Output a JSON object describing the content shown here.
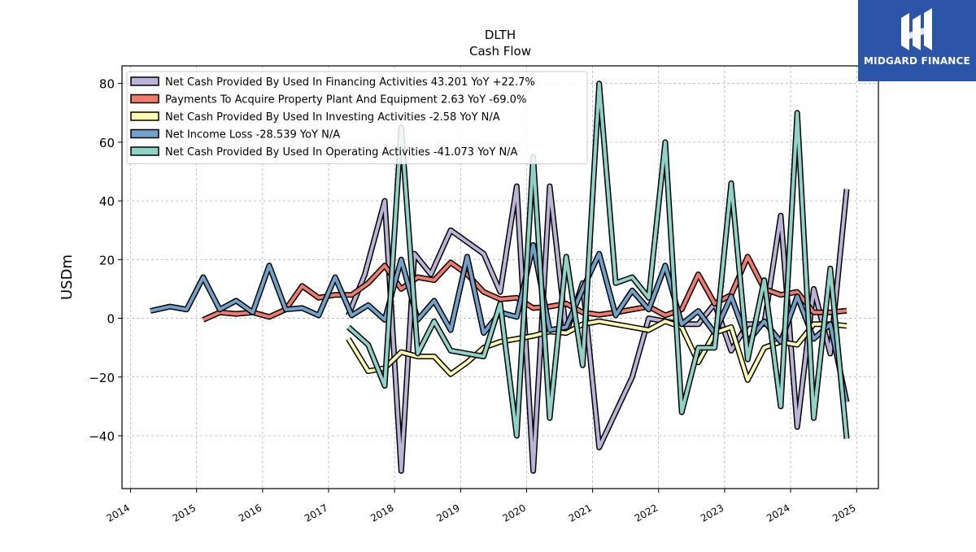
{
  "brand": {
    "name": "MIDGARD FINANCE",
    "color": "#2c54a8"
  },
  "chart_data": {
    "type": "line",
    "title": "DLTH",
    "subtitle": "Cash Flow",
    "xlabel": "",
    "ylabel": "USDm",
    "ylim": [
      -58,
      86
    ],
    "yticks": [
      -40,
      -20,
      0,
      20,
      40,
      60,
      80
    ],
    "ytick_labels": [
      "−40",
      "−20",
      "0",
      "20",
      "40",
      "60",
      "80"
    ],
    "xlim": [
      2013.87,
      2025.33
    ],
    "xticks": [
      2014,
      2015,
      2016,
      2017,
      2018,
      2019,
      2020,
      2021,
      2022,
      2023,
      2024,
      2025
    ],
    "xtick_labels": [
      "2014",
      "2015",
      "2016",
      "2017",
      "2018",
      "2019",
      "2020",
      "2021",
      "2022",
      "2023",
      "2024",
      "2025"
    ],
    "grid": true,
    "legend_position": "top-left",
    "series": [
      {
        "name": "Net Cash Provided By Used In Financing Activities  43.201 YoY +22.7%",
        "color": "#bcb3d8",
        "points": [
          [
            2017.3,
            1
          ],
          [
            2017.55,
            15
          ],
          [
            2017.85,
            40
          ],
          [
            2018.1,
            -52
          ],
          [
            2018.3,
            22
          ],
          [
            2018.55,
            15
          ],
          [
            2018.85,
            30
          ],
          [
            2019.35,
            22
          ],
          [
            2019.6,
            9
          ],
          [
            2019.85,
            45
          ],
          [
            2020.1,
            -52
          ],
          [
            2020.35,
            45
          ],
          [
            2020.6,
            -5
          ],
          [
            2020.85,
            12
          ],
          [
            2021.1,
            -44
          ],
          [
            2021.6,
            -20
          ],
          [
            2021.85,
            0
          ],
          [
            2022.1,
            -1
          ],
          [
            2022.35,
            -2
          ],
          [
            2022.6,
            -2
          ],
          [
            2022.85,
            5
          ],
          [
            2023.1,
            -11
          ],
          [
            2023.35,
            -2
          ],
          [
            2023.6,
            -2
          ],
          [
            2023.85,
            35
          ],
          [
            2024.1,
            -37
          ],
          [
            2024.35,
            10
          ],
          [
            2024.6,
            -12
          ],
          [
            2024.85,
            44
          ]
        ]
      },
      {
        "name": "Payments To Acquire Property Plant And Equipment  2.63 YoY -69.0%",
        "color": "#f07b6b",
        "points": [
          [
            2015.1,
            -0.5
          ],
          [
            2015.35,
            2
          ],
          [
            2015.6,
            1.5
          ],
          [
            2015.85,
            2
          ],
          [
            2016.1,
            0.5
          ],
          [
            2016.35,
            3
          ],
          [
            2016.6,
            11
          ],
          [
            2016.85,
            7
          ],
          [
            2017.1,
            8
          ],
          [
            2017.35,
            8
          ],
          [
            2017.6,
            12
          ],
          [
            2017.85,
            18
          ],
          [
            2018.1,
            10
          ],
          [
            2018.35,
            14
          ],
          [
            2018.6,
            13
          ],
          [
            2018.85,
            19
          ],
          [
            2019.1,
            15
          ],
          [
            2019.35,
            9
          ],
          [
            2019.6,
            6.5
          ],
          [
            2019.85,
            7
          ],
          [
            2020.1,
            3.5
          ],
          [
            2020.35,
            4
          ],
          [
            2020.6,
            5
          ],
          [
            2020.85,
            2
          ],
          [
            2021.1,
            1.2
          ],
          [
            2021.35,
            2
          ],
          [
            2021.6,
            3
          ],
          [
            2021.85,
            4
          ],
          [
            2022.1,
            1
          ],
          [
            2022.35,
            3
          ],
          [
            2022.6,
            15
          ],
          [
            2022.85,
            5
          ],
          [
            2023.1,
            8
          ],
          [
            2023.35,
            21
          ],
          [
            2023.6,
            10
          ],
          [
            2023.85,
            8
          ],
          [
            2024.1,
            9
          ],
          [
            2024.35,
            2
          ],
          [
            2024.6,
            2
          ],
          [
            2024.85,
            2.63
          ]
        ]
      },
      {
        "name": "Net Cash Provided By Used In Investing Activities  -2.58 YoY N/A",
        "color": "#fdfcae",
        "points": [
          [
            2017.3,
            -7
          ],
          [
            2017.6,
            -18
          ],
          [
            2017.85,
            -17
          ],
          [
            2018.1,
            -11.5
          ],
          [
            2018.35,
            -13
          ],
          [
            2018.6,
            -13
          ],
          [
            2018.85,
            -19
          ],
          [
            2019.1,
            -15
          ],
          [
            2019.35,
            -10
          ],
          [
            2019.6,
            -8
          ],
          [
            2019.85,
            -7
          ],
          [
            2020.1,
            -6
          ],
          [
            2020.35,
            -4.5
          ],
          [
            2020.6,
            -5
          ],
          [
            2020.85,
            -2
          ],
          [
            2021.1,
            -1
          ],
          [
            2021.35,
            -2
          ],
          [
            2021.6,
            -3
          ],
          [
            2021.85,
            -4
          ],
          [
            2022.1,
            -1
          ],
          [
            2022.35,
            -3
          ],
          [
            2022.6,
            -15
          ],
          [
            2022.85,
            -5
          ],
          [
            2023.1,
            -3
          ],
          [
            2023.35,
            -21
          ],
          [
            2023.6,
            -10
          ],
          [
            2023.85,
            -8
          ],
          [
            2024.1,
            -9
          ],
          [
            2024.35,
            -2
          ],
          [
            2024.6,
            -2
          ],
          [
            2024.85,
            -2.58
          ]
        ]
      },
      {
        "name": "Net Income Loss  -28.539 YoY N/A",
        "color": "#6fa3cb",
        "points": [
          [
            2014.3,
            2.5
          ],
          [
            2014.6,
            4
          ],
          [
            2014.85,
            3
          ],
          [
            2015.1,
            14
          ],
          [
            2015.35,
            3
          ],
          [
            2015.6,
            6
          ],
          [
            2015.85,
            2
          ],
          [
            2016.1,
            18
          ],
          [
            2016.35,
            3
          ],
          [
            2016.6,
            3.5
          ],
          [
            2016.85,
            1
          ],
          [
            2017.1,
            14
          ],
          [
            2017.35,
            1
          ],
          [
            2017.6,
            4.5
          ],
          [
            2017.85,
            -0.5
          ],
          [
            2018.1,
            20
          ],
          [
            2018.35,
            -0.5
          ],
          [
            2018.6,
            6
          ],
          [
            2018.85,
            -4
          ],
          [
            2019.1,
            21
          ],
          [
            2019.35,
            -5
          ],
          [
            2019.6,
            2
          ],
          [
            2019.85,
            0.5
          ],
          [
            2020.1,
            25
          ],
          [
            2020.35,
            -4
          ],
          [
            2020.6,
            -3
          ],
          [
            2020.85,
            10
          ],
          [
            2021.1,
            22
          ],
          [
            2021.35,
            1
          ],
          [
            2021.6,
            9.5
          ],
          [
            2021.85,
            3
          ],
          [
            2022.1,
            18
          ],
          [
            2022.35,
            -2
          ],
          [
            2022.6,
            2.5
          ],
          [
            2022.85,
            -5
          ],
          [
            2023.1,
            7.5
          ],
          [
            2023.35,
            -8
          ],
          [
            2023.6,
            -1
          ],
          [
            2023.85,
            -8
          ],
          [
            2024.1,
            7.5
          ],
          [
            2024.35,
            -7
          ],
          [
            2024.6,
            -2
          ],
          [
            2024.85,
            -28.5
          ]
        ]
      },
      {
        "name": "Net Cash Provided By Used In Operating Activities  -41.073 YoY N/A",
        "color": "#8dd3c7",
        "points": [
          [
            2017.3,
            -3
          ],
          [
            2017.6,
            -9
          ],
          [
            2017.85,
            -23
          ],
          [
            2018.1,
            65
          ],
          [
            2018.35,
            -12
          ],
          [
            2018.6,
            -1
          ],
          [
            2018.85,
            -11
          ],
          [
            2019.1,
            -12
          ],
          [
            2019.35,
            -13
          ],
          [
            2019.6,
            5
          ],
          [
            2019.85,
            -40
          ],
          [
            2020.1,
            55
          ],
          [
            2020.35,
            -34
          ],
          [
            2020.6,
            21
          ],
          [
            2020.85,
            -16
          ],
          [
            2021.1,
            80
          ],
          [
            2021.35,
            12
          ],
          [
            2021.6,
            14
          ],
          [
            2021.85,
            7
          ],
          [
            2022.1,
            60
          ],
          [
            2022.35,
            -32
          ],
          [
            2022.6,
            -10
          ],
          [
            2022.85,
            -10
          ],
          [
            2023.1,
            46
          ],
          [
            2023.35,
            -14
          ],
          [
            2023.6,
            13
          ],
          [
            2023.85,
            -30
          ],
          [
            2024.1,
            70
          ],
          [
            2024.35,
            -34
          ],
          [
            2024.6,
            17
          ],
          [
            2024.85,
            -41
          ]
        ]
      }
    ]
  }
}
